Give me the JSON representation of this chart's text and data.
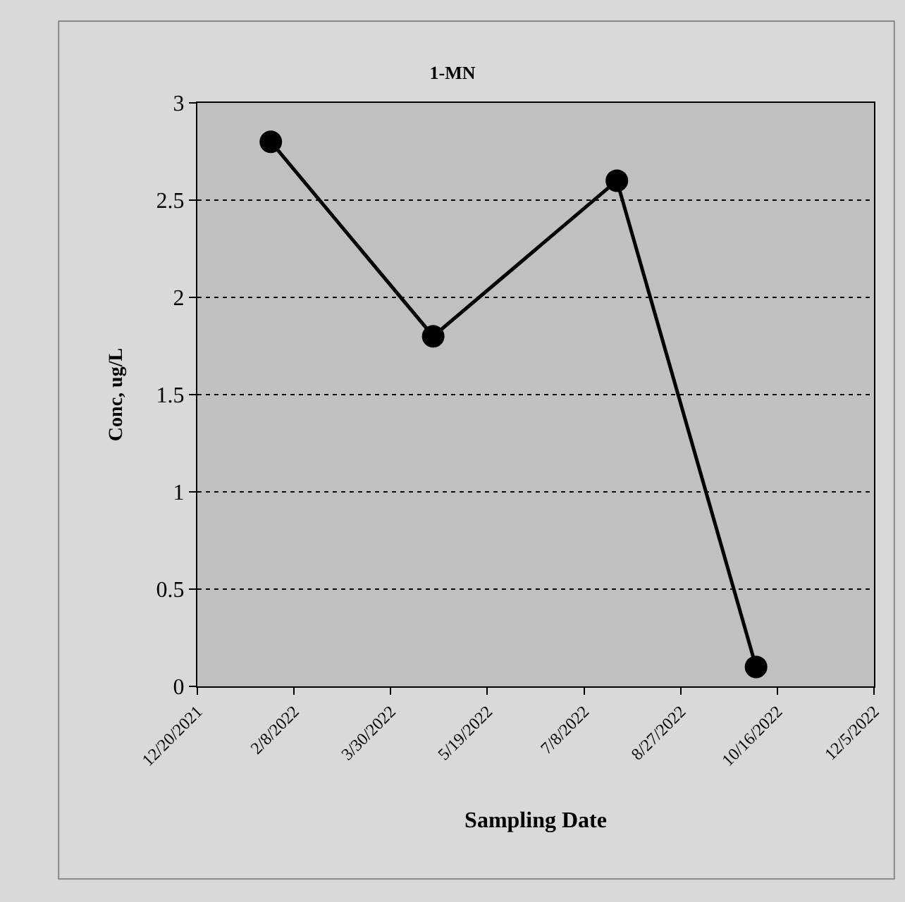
{
  "chart_data": {
    "type": "line",
    "title": "1-MN",
    "xlabel": "Sampling Date",
    "ylabel": "Conc, ug/L",
    "x": [
      "2022-01-27",
      "2022-04-21",
      "2022-07-25",
      "2022-10-05"
    ],
    "series": [
      {
        "color": "#000000",
        "values": [
          2.8,
          1.8,
          2.6,
          0.1
        ]
      }
    ],
    "xlim": [
      "2021-12-20",
      "2022-12-05"
    ],
    "xticks": [
      {
        "value": "2021-12-20",
        "label": "12/20/2021"
      },
      {
        "value": "2022-02-08",
        "label": "2/8/2022"
      },
      {
        "value": "2022-03-30",
        "label": "3/30/2022"
      },
      {
        "value": "2022-05-19",
        "label": "5/19/2022"
      },
      {
        "value": "2022-07-08",
        "label": "7/8/2022"
      },
      {
        "value": "2022-08-27",
        "label": "8/27/2022"
      },
      {
        "value": "2022-10-16",
        "label": "10/16/2022"
      },
      {
        "value": "2022-12-05",
        "label": "12/5/2022"
      }
    ],
    "ylim": [
      0,
      3
    ],
    "yticks": [
      0,
      0.5,
      1,
      1.5,
      2,
      2.5,
      3
    ],
    "grid": "y",
    "marker": "circle",
    "line_style": "solid",
    "legend": false
  }
}
